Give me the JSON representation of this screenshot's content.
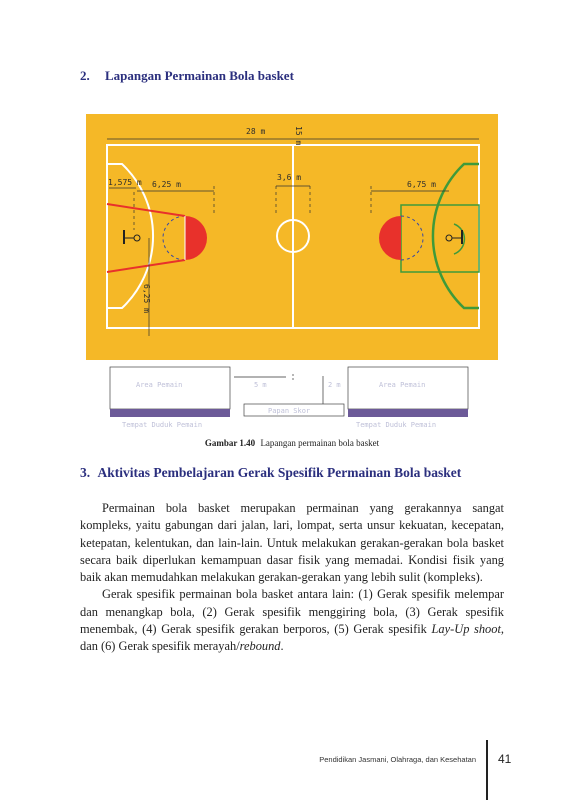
{
  "section2": {
    "number": "2.",
    "title": "Lapangan Permainan Bola basket"
  },
  "court": {
    "len_label": "28 m",
    "width_label": "15 m",
    "radius_center": "3,6 m",
    "dist_1575": "1,575 m",
    "dist_625_top": "6,25 m",
    "dist_675": "6,75 m",
    "dist_625_vert": "6,25 m",
    "area_left": "Area Pemain",
    "area_right": "Area Pemain",
    "bench_left": "Tempat Duduk Pemain",
    "bench_right": "Tempat Duduk Pemain",
    "gap_5m": "5 m",
    "gap_2m": "2 m",
    "scoreboard": "Papan Skor",
    "colors": {
      "floor": "#f5b827",
      "red": "#e8312b",
      "green": "#3f9a3a",
      "bench": "#6c5a98"
    }
  },
  "figure_caption": {
    "label": "Gambar 1.40",
    "text": "Lapangan permainan bola basket"
  },
  "section3": {
    "number": "3.",
    "title": "Aktivitas Pembelajaran Gerak Spesifik Permainan Bola basket"
  },
  "paragraphs": {
    "p1": "Permainan bola basket merupakan permainan yang gerakannya sangat kompleks, yaitu gabungan dari jalan, lari, lompat, serta unsur kekuatan, kecepatan, ketepatan, kelentukan, dan lain-lain.  Untuk melakukan gerakan-gerakan bola basket secara baik diperlukan kemampuan dasar fisik yang memadai. Kondisi fisik yang baik akan memudahkan melakukan gerakan-gerakan yang lebih sulit (kompleks).",
    "p2_main": "Gerak spesifik permainan bola basket antara lain: (1) Gerak spesifik melempar dan menangkap bola, (2) Gerak spesifik menggiring bola, (3) Gerak spesifik menembak, (4) Gerak spesifik gerakan berporos, (5) Gerak spesifik ",
    "p2_em1": "Lay-Up shoot",
    "p2_mid": ", dan (6) Gerak spesifik merayah/",
    "p2_em2": "rebound",
    "p2_end": "."
  },
  "footer": {
    "text": "Pendidikan Jasmani, Olahraga, dan Kesehatan",
    "page": "41"
  }
}
